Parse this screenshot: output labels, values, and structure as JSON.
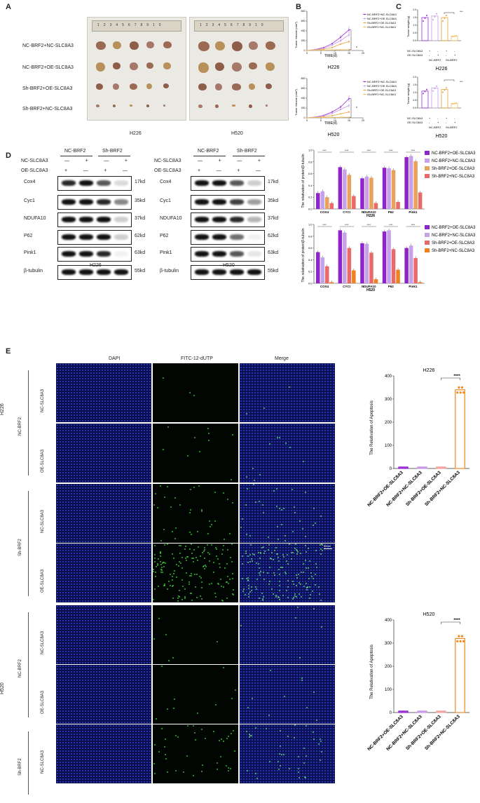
{
  "panels": {
    "a": "A",
    "b": "B",
    "c": "C",
    "d": "D",
    "e": "E"
  },
  "panelA": {
    "row_labels": [
      "NC-BRF2+NC-SLC8A3",
      "NC-BRF2+OE-SLC8A3",
      "Sh-BRF2+OE-SLC8A3",
      "Sh-BRF2+NC-SLC8A3"
    ],
    "photo_labels": [
      "H226",
      "H520"
    ],
    "ruler_numbers": [
      "1",
      "2",
      "3",
      "4",
      "5",
      "6",
      "7",
      "8",
      "9",
      "10"
    ]
  },
  "panelB": {
    "ylabel": "Tumor Volume (mm³)",
    "xlabel": "TIME(d)",
    "legend": [
      "NC-BRF2+NC-SLC8A3",
      "NC-BRF2+OE-SLC8A3",
      "Sh-BRF2+OE-SLC8A3",
      "Sh-BRF2+NC-SLC8A3"
    ],
    "sig": "*",
    "titles": [
      "H226",
      "H520"
    ]
  },
  "panelC": {
    "ylabel": "Tumor weight (g)",
    "sig": "***",
    "row_names": [
      "NC-SLC8A3",
      "OE-SLC8A3"
    ],
    "row_signs": [
      "+",
      "-",
      "+",
      "-"
    ],
    "row_signs2": [
      "-",
      "+",
      "-",
      "+"
    ],
    "group_names": [
      "NC-BRF2",
      "Sh-BRF2"
    ],
    "titles": [
      "H226",
      "H520"
    ]
  },
  "panelD": {
    "groups": [
      "NC-BRF2",
      "Sh-BRF2"
    ],
    "row_names": [
      "NC-SLC8A3",
      "OE-SLC8A3"
    ],
    "signs1": [
      "—",
      "+",
      "—",
      "+"
    ],
    "signs2": [
      "+",
      "—",
      "+",
      "—"
    ],
    "proteins": [
      "Cox4",
      "Cyc1",
      "NDUFA10",
      "P62",
      "Pink1",
      "β-tubulin"
    ],
    "kds": [
      "17kd",
      "35kd",
      "37kd",
      "62kd",
      "63kd",
      "55kd"
    ],
    "blot_titles": [
      "H226",
      "H520"
    ],
    "bar_ylabel": "The relativation of protein/β-tubulin",
    "bar_titles": [
      "H226",
      "H520"
    ],
    "bar_categories": [
      "COX4",
      "CYCI",
      "NDUFA10",
      "P62",
      "Pink1"
    ],
    "bar_legend": [
      "NC-BRF2+OE-SLC8A3",
      "NC-BRF2+NC-SLC8A3",
      "Sh-BRF2+OE-SLC8A3",
      "Sh-BRF2+NC-SLC8A3"
    ],
    "sig": "****"
  },
  "panelE": {
    "col_titles": [
      "DAPI",
      "FITC-12-dUTP",
      "Merge"
    ],
    "outer_labels": [
      "H226",
      "H520"
    ],
    "group_labels": [
      "NC-BRF2",
      "Sh-BRF2",
      "NC-BRF2",
      "Sh-BRF2"
    ],
    "row_labels": [
      "NC-SLC8A3",
      "OE-SLC8A3",
      "NC-SLC8A3",
      "OE-SLC8A3",
      "NC-SLC8A3",
      "OE-SLC8A3",
      "NC-SLC8A3",
      "OE-SLC8A3"
    ],
    "scale": "50um",
    "apop_ylabel": "The Relativation of Apoptosis",
    "apop_titles": [
      "H226",
      "H520"
    ],
    "apop_categories": [
      "NC-BRF2+OE-SLC8A3",
      "NC-BRF2+NC-SLC8A3",
      "Sh-BRF2+OE-SLC8A3",
      "Sh-BRF2+NC-SLC8A3"
    ],
    "apop_sig": "****",
    "apop_ticks": [
      "0",
      "100",
      "200",
      "300",
      "400"
    ]
  },
  "chart_data": [
    {
      "type": "line",
      "title": "H226",
      "xlabel": "TIME(d)",
      "ylabel": "Tumor Volume (mm³)",
      "x": [
        0,
        3,
        6,
        9,
        12,
        15
      ],
      "xlim": [
        0,
        20
      ],
      "ylim": [
        0,
        800
      ],
      "xticks": [
        0,
        5,
        10,
        15,
        20
      ],
      "yticks": [
        0,
        200,
        400,
        600,
        800
      ],
      "series": [
        {
          "name": "NC-BRF2+NC-SLC8A3",
          "color": "#9b30d9",
          "values": [
            0,
            20,
            60,
            140,
            270,
            420
          ]
        },
        {
          "name": "NC-BRF2+OE-SLC8A3",
          "color": "#c79be8",
          "values": [
            0,
            15,
            45,
            110,
            200,
            320
          ]
        },
        {
          "name": "Sh-BRF2+OE-SLC8A3",
          "color": "#e6a23c",
          "values": [
            0,
            10,
            25,
            60,
            130,
            180
          ]
        },
        {
          "name": "Sh-BRF2+NC-SLC8A3",
          "color": "#f0c060",
          "values": [
            0,
            5,
            8,
            12,
            15,
            20
          ]
        }
      ]
    },
    {
      "type": "line",
      "title": "H520",
      "xlabel": "TIME(d)",
      "ylabel": "Tumor Volume (mm³)",
      "x": [
        0,
        3,
        6,
        9,
        12,
        15
      ],
      "xlim": [
        0,
        20
      ],
      "ylim": [
        0,
        800
      ],
      "xticks": [
        0,
        5,
        10,
        15,
        20
      ],
      "yticks": [
        0,
        200,
        400,
        600,
        800
      ],
      "series": [
        {
          "name": "NC-BRF2+NC-SLC8A3",
          "color": "#9b30d9",
          "values": [
            0,
            15,
            50,
            120,
            220,
            390
          ]
        },
        {
          "name": "NC-BRF2+OE-SLC8A3",
          "color": "#c79be8",
          "values": [
            0,
            12,
            40,
            90,
            170,
            250
          ]
        },
        {
          "name": "Sh-BRF2+OE-SLC8A3",
          "color": "#e6a23c",
          "values": [
            0,
            8,
            20,
            45,
            80,
            120
          ]
        },
        {
          "name": "Sh-BRF2+NC-SLC8A3",
          "color": "#f0c060",
          "values": [
            0,
            5,
            6,
            8,
            10,
            12
          ]
        }
      ]
    },
    {
      "type": "bar",
      "title": "H226",
      "ylabel": "Tumor weight (g)",
      "ylim": [
        0,
        2
      ],
      "yticks": [
        0.0,
        0.5,
        1.0,
        1.5,
        2.0
      ],
      "colors": [
        "#9b30d9",
        "#c79be8",
        "#e6a23c",
        "#f0c060"
      ],
      "values": [
        1.5,
        1.6,
        1.5,
        0.3
      ]
    },
    {
      "type": "bar",
      "title": "H520",
      "ylabel": "Tumor weight (g)",
      "ylim": [
        0,
        2
      ],
      "yticks": [
        0.0,
        0.5,
        1.0,
        1.5,
        2.0
      ],
      "colors": [
        "#9b30d9",
        "#c79be8",
        "#e6a23c",
        "#f0c060"
      ],
      "values": [
        1.1,
        1.3,
        1.2,
        0.3
      ]
    },
    {
      "type": "bar",
      "title": "H226",
      "ylabel": "The relativation of protein/β-tubulin",
      "ylim": [
        0,
        1.0
      ],
      "yticks": [
        0.0,
        0.2,
        0.4,
        0.6,
        0.8,
        1.0
      ],
      "categories": [
        "COX4",
        "CYCI",
        "NDUFA10",
        "P62",
        "Pink1"
      ],
      "series": [
        {
          "name": "NC-BRF2+OE-SLC8A3",
          "color": "#8e24c9",
          "values": [
            0.27,
            0.71,
            0.52,
            0.7,
            0.88
          ]
        },
        {
          "name": "NC-BRF2+NC-SLC8A3",
          "color": "#c7a0ea",
          "values": [
            0.3,
            0.67,
            0.55,
            0.69,
            0.9
          ]
        },
        {
          "name": "Sh-BRF2+OE-SLC8A3",
          "color": "#e8a25a",
          "values": [
            0.2,
            0.58,
            0.53,
            0.66,
            0.81
          ]
        },
        {
          "name": "Sh-BRF2+NC-SLC8A3",
          "color": "#ea6a6a",
          "values": [
            0.1,
            0.22,
            0.1,
            0.12,
            0.28
          ]
        }
      ]
    },
    {
      "type": "bar",
      "title": "H520",
      "ylabel": "The relativation of protein/β-tubulin",
      "ylim": [
        0,
        1.0
      ],
      "yticks": [
        0.0,
        0.2,
        0.4,
        0.6,
        0.8,
        1.0
      ],
      "categories": [
        "COX4",
        "CYCI",
        "NDUFA10",
        "P62",
        "Pink1"
      ],
      "series": [
        {
          "name": "NC-BRF2+OE-SLC8A3",
          "color": "#8e24c9",
          "values": [
            0.53,
            0.9,
            0.68,
            0.88,
            0.6
          ]
        },
        {
          "name": "NC-BRF2+NC-SLC8A3",
          "color": "#c7a0ea",
          "values": [
            0.44,
            0.86,
            0.67,
            0.9,
            0.64
          ]
        },
        {
          "name": "Sh-BRF2+OE-SLC8A3",
          "color": "#ea6a6a",
          "values": [
            0.29,
            0.6,
            0.52,
            0.58,
            0.43
          ]
        },
        {
          "name": "Sh-BRF2+NC-SLC8A3",
          "color": "#f08020",
          "values": [
            0.02,
            0.22,
            0.07,
            0.23,
            0.02
          ]
        }
      ]
    },
    {
      "type": "bar",
      "title": "H226",
      "ylabel": "The Relativation of Apoptosis",
      "ylim": [
        0,
        400
      ],
      "yticks": [
        0,
        100,
        200,
        300,
        400
      ],
      "categories": [
        "NC-BRF2+OE-SLC8A3",
        "NC-BRF2+NC-SLC8A3",
        "Sh-BRF2+OE-SLC8A3",
        "Sh-BRF2+NC-SLC8A3"
      ],
      "colors": [
        "#9b30d9",
        "#c79be8",
        "#f4a3a3",
        "#f08a20"
      ],
      "values": [
        5,
        5,
        5,
        340
      ]
    },
    {
      "type": "bar",
      "title": "H520",
      "ylabel": "The Relativation of Apoptosis",
      "ylim": [
        0,
        400
      ],
      "yticks": [
        0,
        100,
        200,
        300,
        400
      ],
      "categories": [
        "NC-BRF2+OE-SLC8A3",
        "NC-BRF2+NC-SLC8A3",
        "Sh-BRF2+OE-SLC8A3",
        "Sh-BRF2+NC-SLC8A3"
      ],
      "colors": [
        "#9b30d9",
        "#c79be8",
        "#f4a3a3",
        "#f08a20"
      ],
      "values": [
        5,
        5,
        5,
        320
      ]
    }
  ]
}
